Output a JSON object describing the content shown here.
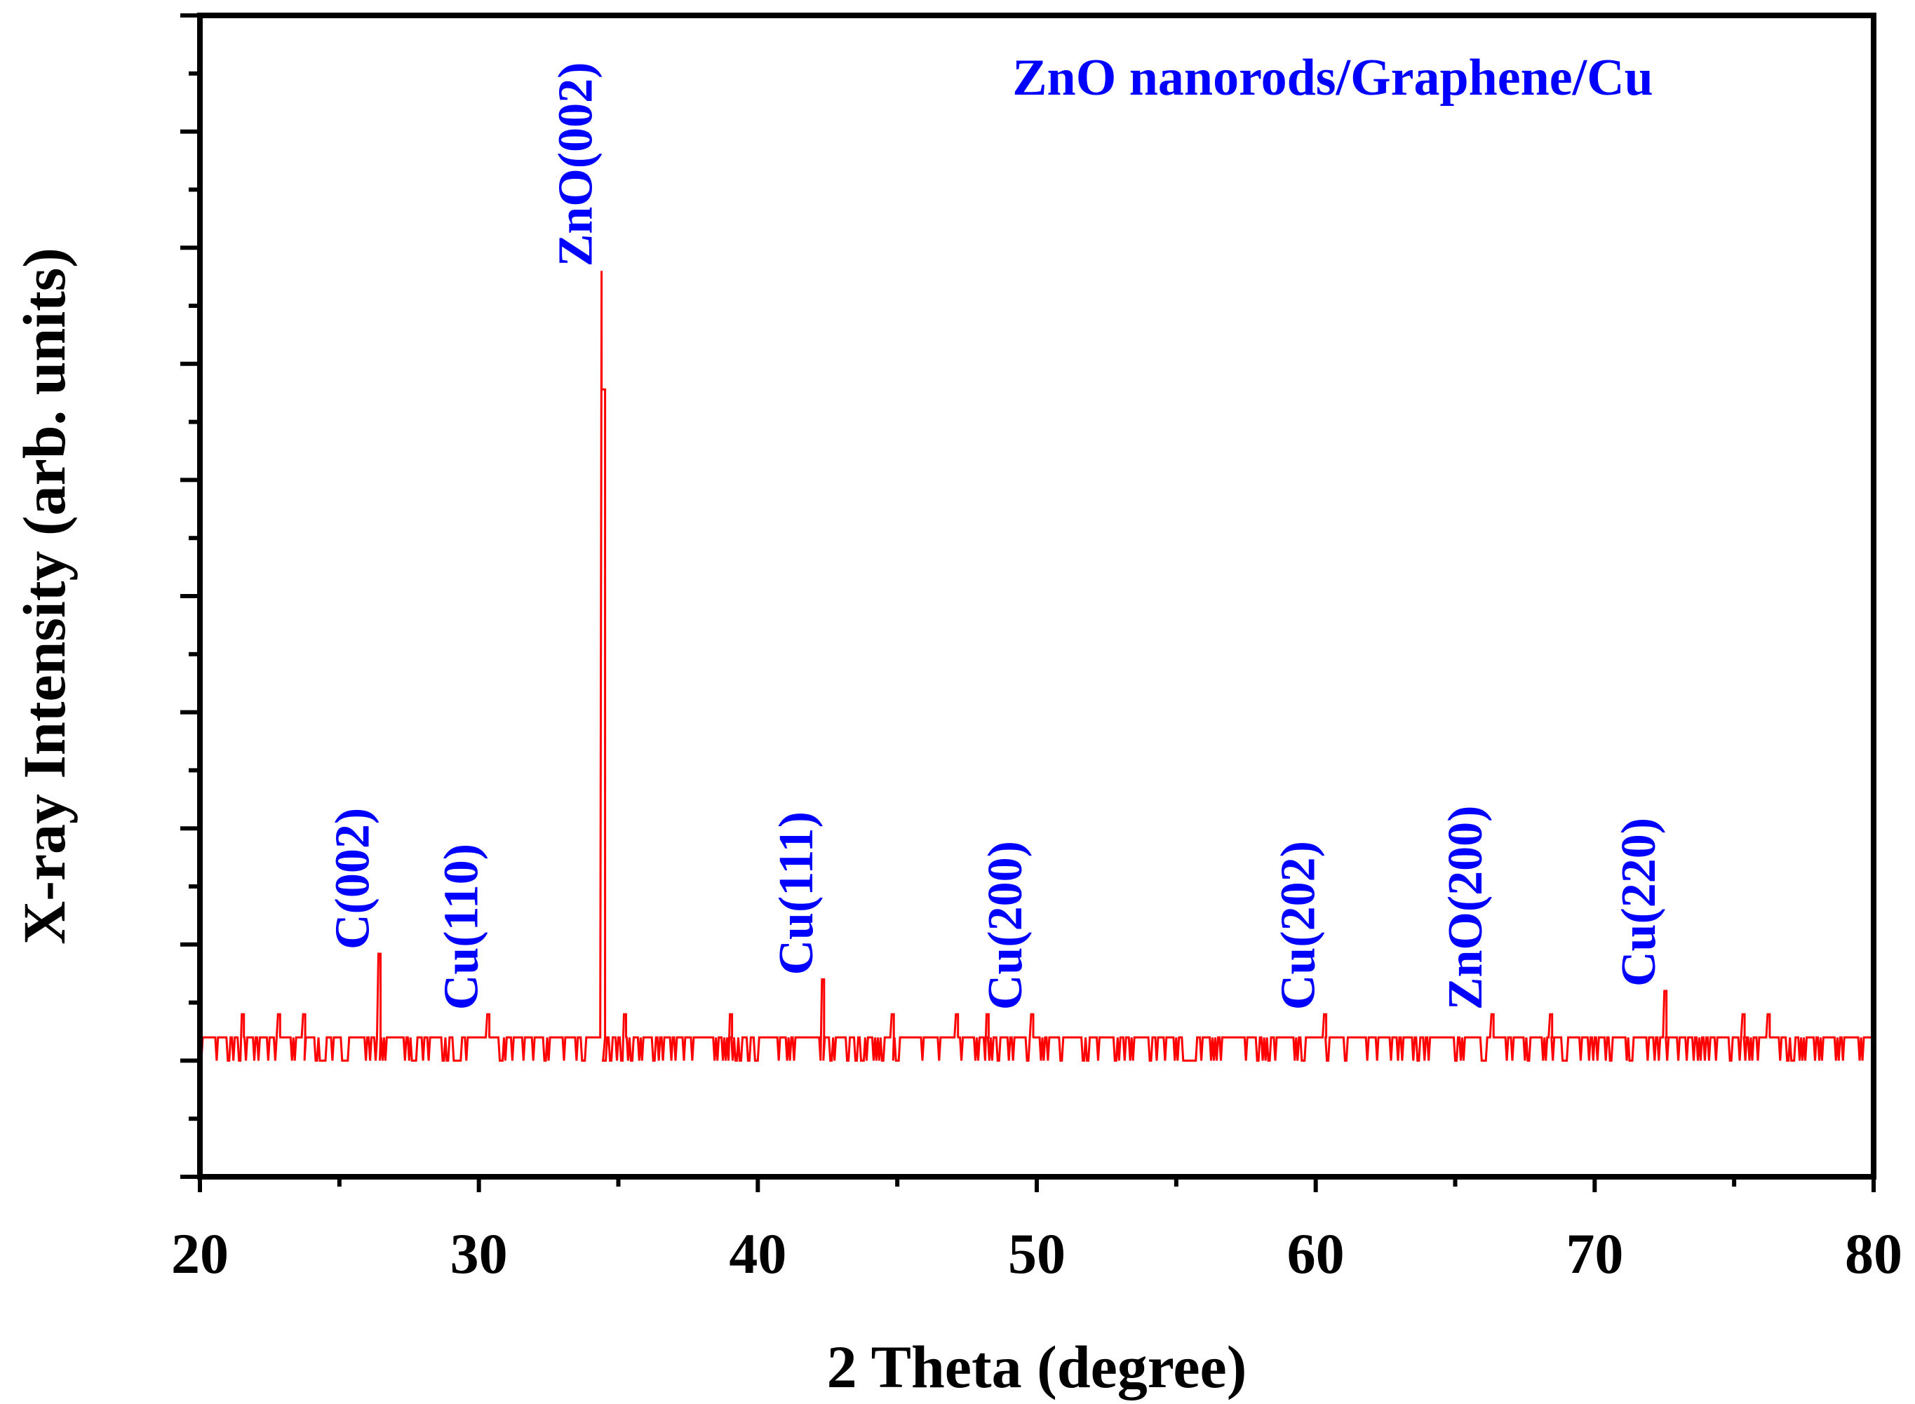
{
  "chart_data": {
    "type": "line",
    "title": "ZnO nanorods/Graphene/Cu",
    "xlabel": "2 Theta (degree)",
    "ylabel": "X-ray Intensity (arb. units)",
    "xlim": [
      20,
      80
    ],
    "ylim": [
      -10,
      90
    ],
    "x_ticks": [
      "20",
      "30",
      "40",
      "50",
      "60",
      "70",
      "80"
    ],
    "y_tick_labels_shown": false,
    "grid": false,
    "line_color": "#ff0000",
    "label_color": "#0000ff",
    "baseline": 0,
    "noise_level": 2,
    "gaps": [
      [
        24.3,
        24.5
      ],
      [
        29.1,
        29.4
      ],
      [
        55.2,
        55.7
      ]
    ],
    "peaks": [
      {
        "x": 26.4,
        "y": 9.2,
        "label": "C(002)"
      },
      {
        "x": 30.3,
        "y": 4.0,
        "label": "Cu(110)"
      },
      {
        "x": 34.4,
        "y": 68.0,
        "label": "ZnO(002)"
      },
      {
        "x": 42.3,
        "y": 7.0,
        "label": "Cu(111)"
      },
      {
        "x": 49.8,
        "y": 4.0,
        "label": "Cu(200)"
      },
      {
        "x": 60.3,
        "y": 4.0,
        "label": "Cu(202)"
      },
      {
        "x": 66.3,
        "y": 4.0,
        "label": "ZnO(200)"
      },
      {
        "x": 72.5,
        "y": 6.0,
        "label": "Cu(220)"
      }
    ],
    "minor_peaks": [
      {
        "x": 21.5,
        "y": 4.0
      },
      {
        "x": 22.8,
        "y": 4.0
      },
      {
        "x": 23.7,
        "y": 4.0
      },
      {
        "x": 35.2,
        "y": 4.0
      },
      {
        "x": 39.0,
        "y": 4.0
      },
      {
        "x": 44.8,
        "y": 4.0
      },
      {
        "x": 47.1,
        "y": 4.0
      },
      {
        "x": 48.2,
        "y": 4.0
      },
      {
        "x": 68.4,
        "y": 4.0
      },
      {
        "x": 75.3,
        "y": 4.0
      },
      {
        "x": 76.2,
        "y": 4.0
      }
    ]
  }
}
